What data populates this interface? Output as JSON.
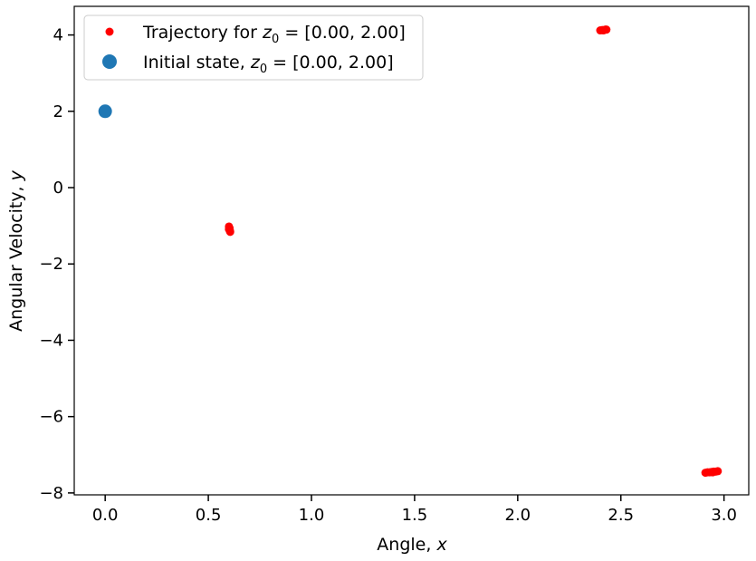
{
  "chart_data": {
    "type": "scatter",
    "title": "",
    "xlabel": "Angle, x",
    "ylabel": "Angular Velocity, y",
    "xlim": [
      -0.15,
      3.12
    ],
    "ylim": [
      -8.05,
      4.75
    ],
    "xticks": [
      0.0,
      0.5,
      1.0,
      1.5,
      2.0,
      2.5,
      3.0
    ],
    "xtick_labels": [
      "0.0",
      "0.5",
      "1.0",
      "1.5",
      "2.0",
      "2.5",
      "3.0"
    ],
    "yticks": [
      4,
      2,
      0,
      -2,
      -4,
      -6,
      -8
    ],
    "ytick_labels": [
      "4",
      "2",
      "0",
      "−2",
      "−4",
      "−6",
      "−8"
    ],
    "grid": false,
    "legend_position": "upper-left",
    "series": [
      {
        "name": "Trajectory for z0 = [0.00, 2.00]",
        "color": "#ff0000",
        "marker": "small-dot",
        "points": [
          [
            0.6,
            -1.02
          ],
          [
            0.601,
            -1.05
          ],
          [
            0.602,
            -1.08
          ],
          [
            0.603,
            -1.1
          ],
          [
            0.604,
            -1.12
          ],
          [
            0.605,
            -1.14
          ],
          [
            0.603,
            -1.06
          ],
          [
            0.606,
            -1.16
          ],
          [
            0.6,
            -1.09
          ],
          [
            2.4,
            4.12
          ],
          [
            2.41,
            4.13
          ],
          [
            2.42,
            4.13
          ],
          [
            2.43,
            4.14
          ],
          [
            2.415,
            4.12
          ],
          [
            2.425,
            4.14
          ],
          [
            2.91,
            -7.47
          ],
          [
            2.92,
            -7.46
          ],
          [
            2.93,
            -7.46
          ],
          [
            2.94,
            -7.45
          ],
          [
            2.95,
            -7.44
          ],
          [
            2.96,
            -7.44
          ],
          [
            2.97,
            -7.43
          ],
          [
            2.945,
            -7.46
          ]
        ]
      },
      {
        "name": "Initial state, z0 = [0.00, 2.00]",
        "color": "#1f77b4",
        "marker": "large-dot",
        "points": [
          [
            0.0,
            2.0
          ]
        ]
      }
    ]
  },
  "legend": {
    "entries": [
      {
        "prefix": "Trajectory for ",
        "z": "z",
        "sub": "0",
        "suffix": " = [0.00, 2.00]"
      },
      {
        "prefix": "Initial state, ",
        "z": "z",
        "sub": "0",
        "suffix": " = [0.00, 2.00]"
      }
    ]
  },
  "labels": {
    "x_text": "Angle, ",
    "x_var": "x",
    "y_text": "Angular Velocity, ",
    "y_var": "y"
  }
}
